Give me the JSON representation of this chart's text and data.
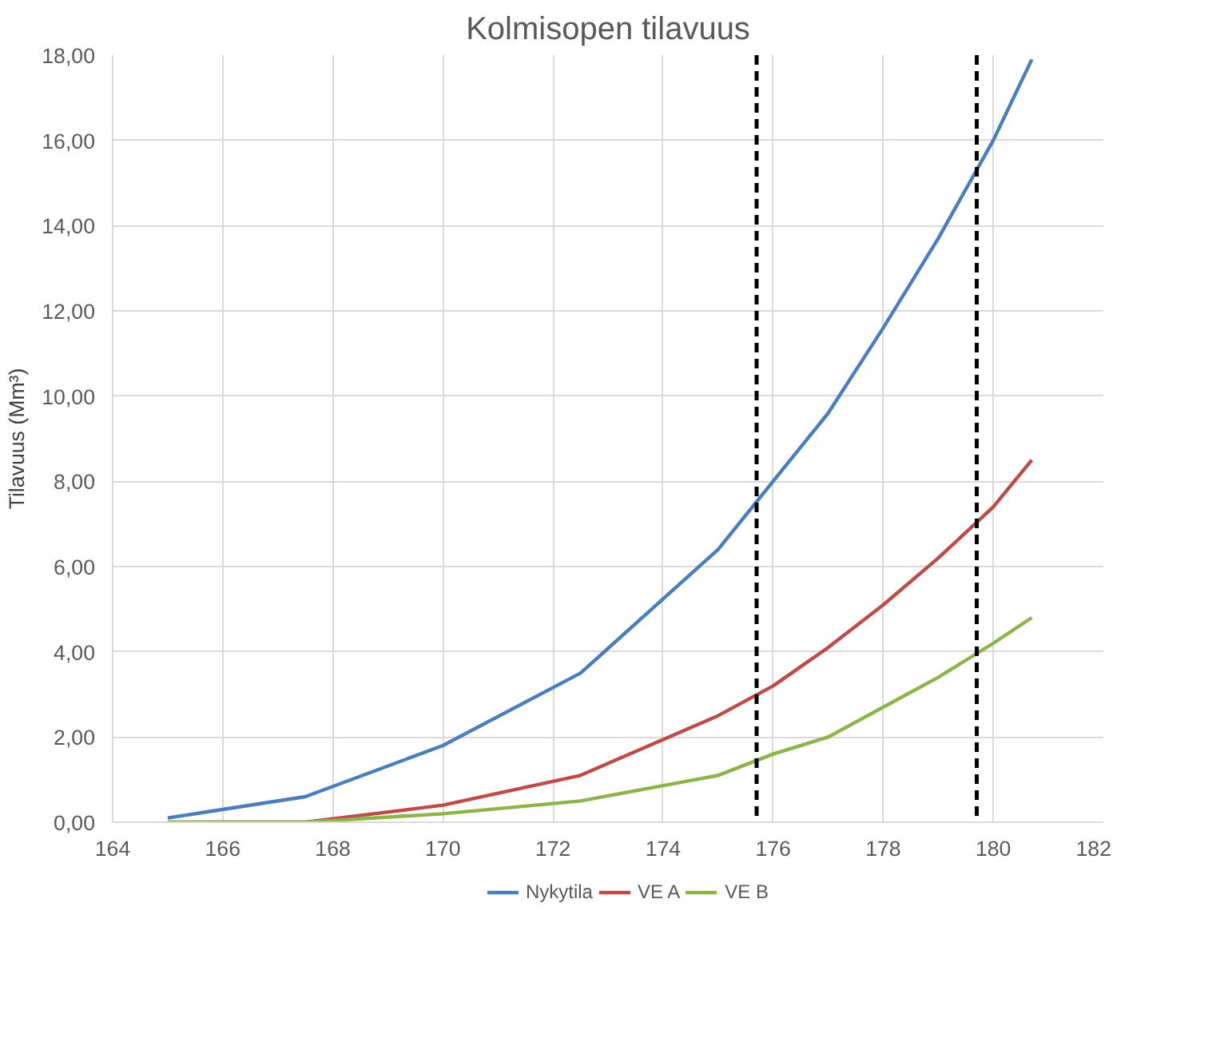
{
  "chart_data": {
    "type": "line",
    "title": "Kolmisopen tilavuus",
    "ylabel": "Tilavuus (Mm³)",
    "series": [
      {
        "name": "Nykytila",
        "color": "#4a7ebb",
        "x": [
          165,
          167.5,
          170,
          172.5,
          175,
          176.5,
          177,
          178,
          179,
          180,
          180.7
        ],
        "values": [
          0.1,
          0.6,
          1.8,
          3.5,
          6.4,
          8.8,
          9.6,
          11.6,
          13.7,
          16.0,
          17.9
        ]
      },
      {
        "name": "VE A",
        "color": "#be4b48",
        "x": [
          165,
          167.5,
          170,
          172.5,
          175,
          176,
          177,
          178,
          179,
          180,
          180.7
        ],
        "values": [
          0,
          0,
          0.4,
          1.1,
          2.5,
          3.2,
          4.1,
          5.1,
          6.2,
          7.4,
          8.5
        ]
      },
      {
        "name": "VE B",
        "color": "#8cb448",
        "x": [
          165,
          167.5,
          170,
          172.5,
          175,
          176,
          177,
          178,
          179,
          180,
          180.7
        ],
        "values": [
          0,
          0,
          0.2,
          0.5,
          1.1,
          1.6,
          2.0,
          2.7,
          3.4,
          4.2,
          4.8
        ]
      }
    ],
    "xlim": [
      164,
      182
    ],
    "xticks": [
      164,
      166,
      168,
      170,
      172,
      174,
      176,
      178,
      180,
      182
    ],
    "ylim": [
      0,
      18
    ],
    "yticks": [
      {
        "value": 0,
        "label": "0,00"
      },
      {
        "value": 2,
        "label": "2,00"
      },
      {
        "value": 4,
        "label": "4,00"
      },
      {
        "value": 6,
        "label": "6,00"
      },
      {
        "value": 8,
        "label": "8,00"
      },
      {
        "value": 10,
        "label": "10,00"
      },
      {
        "value": 12,
        "label": "12,00"
      },
      {
        "value": 14,
        "label": "14,00"
      },
      {
        "value": 16,
        "label": "16,00"
      },
      {
        "value": 18,
        "label": "18,00"
      }
    ],
    "ref_lines": [
      {
        "axis": "x",
        "value": 175.7,
        "color": "#000000",
        "line_style": "dashed"
      },
      {
        "axis": "x",
        "value": 179.7,
        "color": "#000000",
        "line_style": "dashed"
      }
    ],
    "grid": true,
    "legend": "bottom",
    "line_style": "solid"
  }
}
